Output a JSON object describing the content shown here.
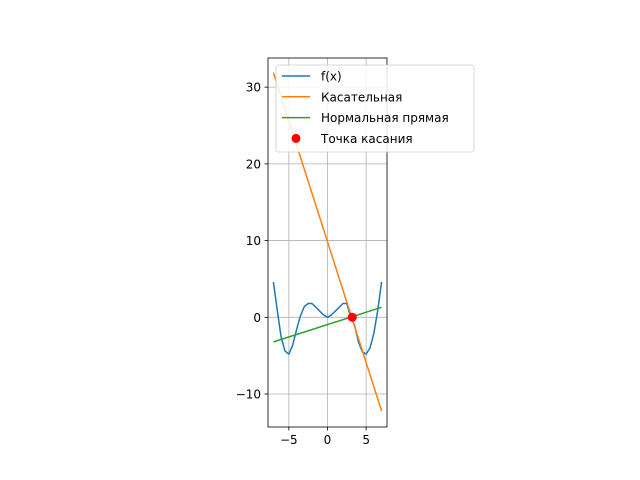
{
  "chart_data": {
    "type": "line",
    "title": "",
    "xlabel": "",
    "ylabel": "",
    "xlim": [
      -7.7,
      7.7
    ],
    "ylim": [
      -14.3,
      33.8
    ],
    "x_ticks": [
      -5,
      0,
      5
    ],
    "y_ticks": [
      -10,
      0,
      10,
      20,
      30
    ],
    "x_tick_labels": [
      "−5",
      "0",
      "5"
    ],
    "y_tick_labels": [
      "−10",
      "0",
      "10",
      "20",
      "30"
    ],
    "grid": true,
    "legend_position": "upper-right",
    "series": [
      {
        "name": "f(x)",
        "kind": "line",
        "color": "#1f77b4",
        "x": [
          -7,
          -6.5,
          -6,
          -5.5,
          -5,
          -4.5,
          -4,
          -3.5,
          -3,
          -2.5,
          -2,
          -1.5,
          -1,
          -0.5,
          0,
          0.5,
          1,
          1.5,
          2,
          2.5,
          3,
          3.5,
          4,
          4.5,
          5,
          5.5,
          6,
          6.5,
          7
        ],
        "y": [
          4.6,
          0.9,
          -2.6,
          -4.4,
          -4.8,
          -3.6,
          -1.6,
          0.2,
          1.4,
          1.8,
          1.8,
          1.3,
          0.8,
          0.3,
          0.0,
          0.3,
          0.8,
          1.3,
          1.8,
          1.8,
          0.0,
          -1.0,
          -3.2,
          -4.5,
          -4.8,
          -4.0,
          -2.1,
          0.9,
          4.6
        ]
      },
      {
        "name": "Касательная",
        "kind": "line",
        "color": "#ff7f0e",
        "x": [
          -7,
          7
        ],
        "y": [
          31.9,
          -12.2
        ]
      },
      {
        "name": "Нормальная прямая",
        "kind": "line",
        "color": "#2ca02c",
        "x": [
          -7,
          7
        ],
        "y": [
          -3.2,
          1.3
        ]
      },
      {
        "name": "Точка касания",
        "kind": "scatter",
        "color": "#ff0000",
        "x": [
          3.2
        ],
        "y": [
          0.0
        ]
      }
    ]
  }
}
